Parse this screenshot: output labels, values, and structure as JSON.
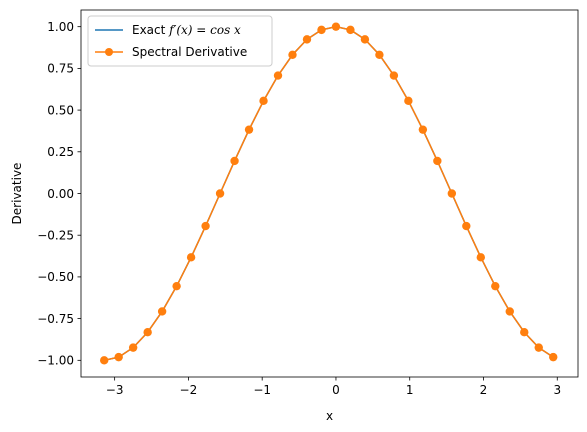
{
  "chart_data": {
    "type": "line",
    "title": "",
    "xlabel": "x",
    "ylabel": "Derivative",
    "xlim": [
      -3.456,
      3.281
    ],
    "ylim": [
      -1.1,
      1.1
    ],
    "xticks": [
      -3,
      -2,
      -1,
      0,
      1,
      2,
      3
    ],
    "xtick_labels": [
      "−3",
      "−2",
      "−1",
      "0",
      "1",
      "2",
      "3"
    ],
    "yticks": [
      -1.0,
      -0.75,
      -0.5,
      -0.25,
      0.0,
      0.25,
      0.5,
      0.75,
      1.0
    ],
    "ytick_labels": [
      "−1.00",
      "−0.75",
      "−0.50",
      "−0.25",
      "0.00",
      "0.25",
      "0.50",
      "0.75",
      "1.00"
    ],
    "grid": false,
    "legend_position": "top-left",
    "legend": [
      {
        "label_pre": "Exact ",
        "label_math": "f′(x) = cos x"
      },
      {
        "label": "Spectral Derivative"
      }
    ],
    "series": [
      {
        "name": "Exact f′(x) = cos x",
        "color": "#1f77b4",
        "marker": "none",
        "x": [
          -3.1416,
          -2.9452,
          -2.7489,
          -2.5525,
          -2.3562,
          -2.1598,
          -1.9635,
          -1.7671,
          -1.5708,
          -1.3744,
          -1.1781,
          -0.9817,
          -0.7854,
          -0.589,
          -0.3927,
          -0.1963,
          0.0,
          0.1963,
          0.3927,
          0.589,
          0.7854,
          0.9817,
          1.1781,
          1.3744,
          1.5708,
          1.7671,
          1.9635,
          2.1598,
          2.3562,
          2.5525,
          2.7489,
          2.9452
        ],
        "y": [
          -1.0,
          -0.9808,
          -0.9239,
          -0.8315,
          -0.7071,
          -0.5556,
          -0.3827,
          -0.1951,
          0.0,
          0.1951,
          0.3827,
          0.5556,
          0.7071,
          0.8315,
          0.9239,
          0.9808,
          1.0,
          0.9808,
          0.9239,
          0.8315,
          0.7071,
          0.5556,
          0.3827,
          0.1951,
          0.0,
          -0.1951,
          -0.3827,
          -0.5556,
          -0.7071,
          -0.8315,
          -0.9239,
          -0.9808
        ]
      },
      {
        "name": "Spectral Derivative",
        "color": "#ff7f0e",
        "marker": "circle",
        "x": [
          -3.1416,
          -2.9452,
          -2.7489,
          -2.5525,
          -2.3562,
          -2.1598,
          -1.9635,
          -1.7671,
          -1.5708,
          -1.3744,
          -1.1781,
          -0.9817,
          -0.7854,
          -0.589,
          -0.3927,
          -0.1963,
          0.0,
          0.1963,
          0.3927,
          0.589,
          0.7854,
          0.9817,
          1.1781,
          1.3744,
          1.5708,
          1.7671,
          1.9635,
          2.1598,
          2.3562,
          2.5525,
          2.7489,
          2.9452
        ],
        "y": [
          -1.0,
          -0.9808,
          -0.9239,
          -0.8315,
          -0.7071,
          -0.5556,
          -0.3827,
          -0.1951,
          0.0,
          0.1951,
          0.3827,
          0.5556,
          0.7071,
          0.8315,
          0.9239,
          0.9808,
          1.0,
          0.9808,
          0.9239,
          0.8315,
          0.7071,
          0.5556,
          0.3827,
          0.1951,
          0.0,
          -0.1951,
          -0.3827,
          -0.5556,
          -0.7071,
          -0.8315,
          -0.9239,
          -0.9808
        ]
      }
    ]
  }
}
